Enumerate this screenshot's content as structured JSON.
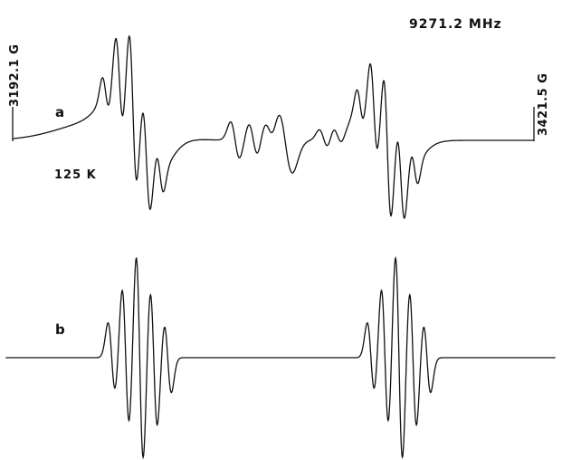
{
  "chart_data": {
    "type": "line",
    "title": "",
    "xlabel": "",
    "ylabel": "",
    "xlim": [
      3192.1,
      3421.5
    ],
    "grid": false,
    "frequency_label": "9271.2 MHz",
    "temperature_label": "125 K",
    "field_start_label": "3192.1 G",
    "field_end_label": "3421.5 G",
    "series": [
      {
        "label": "a",
        "description_type": "experimental",
        "groups": [
          {
            "center": 3245.0,
            "amplitude": 1.0
          },
          {
            "center": 3357.0,
            "amplitude": 0.95
          }
        ],
        "baseline_left": 0.0,
        "baseline_right": 0.0
      },
      {
        "label": "b",
        "description_type": "simulated",
        "groups": [
          {
            "center": 3246.5,
            "amplitude": 1.0
          },
          {
            "center": 3357.5,
            "amplitude": 1.0
          }
        ],
        "baseline_left": 0.0,
        "baseline_right": 0.0
      }
    ],
    "hyperfine_splitting_G": 6.0,
    "line_intensity_pattern": [
      1,
      2,
      3,
      2,
      1
    ]
  }
}
